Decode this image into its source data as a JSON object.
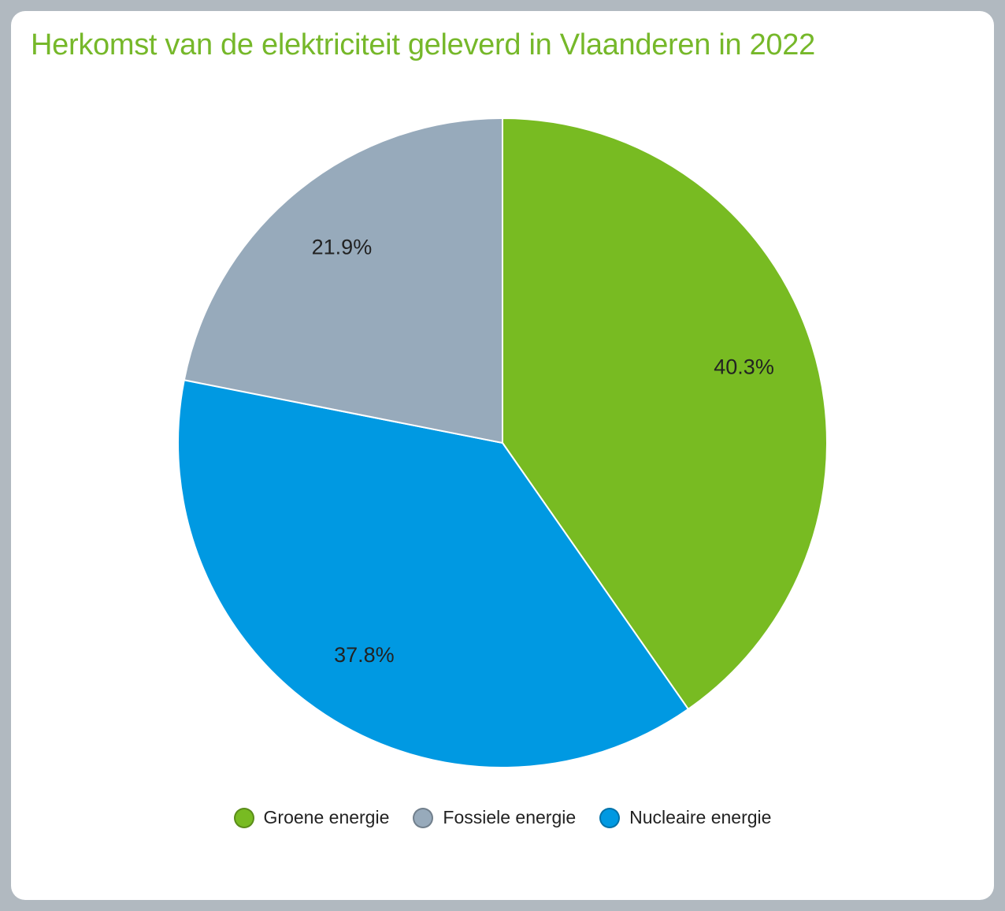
{
  "chart_data": {
    "type": "pie",
    "title": "Herkomst van de elektriciteit geleverd in Vlaanderen in 2022",
    "slices": [
      {
        "label": "Groene energie",
        "value": 40.3,
        "display": "40.3%",
        "color": "#78bb22"
      },
      {
        "label": "Nucleaire energie",
        "value": 37.8,
        "display": "37.8%",
        "color": "#0099e2"
      },
      {
        "label": "Fossiele energie",
        "value": 21.9,
        "display": "21.9%",
        "color": "#97aabb"
      }
    ],
    "legend_order": [
      0,
      2,
      1
    ],
    "legend_position": "bottom"
  }
}
